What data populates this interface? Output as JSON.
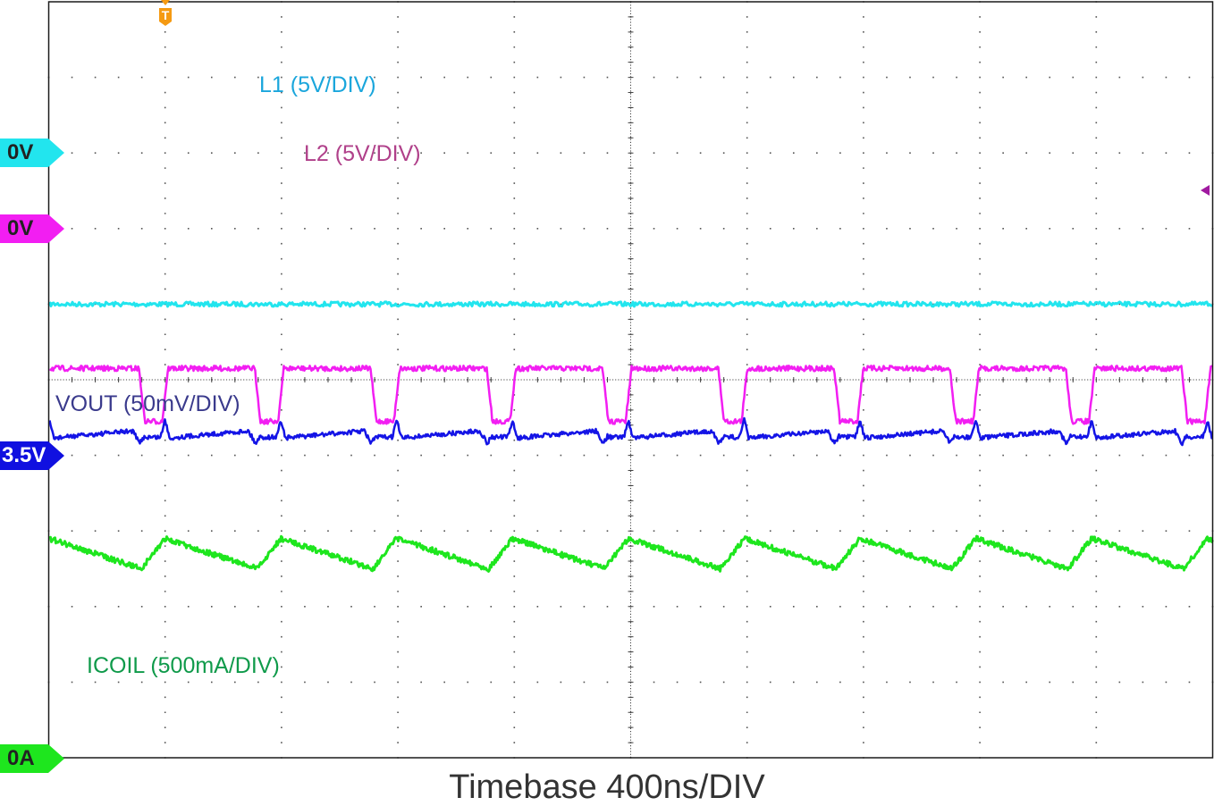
{
  "chart_data": {
    "type": "line",
    "title": "",
    "xlabel": "Timebase 400ns/DIV",
    "ylabel": "",
    "grid": true,
    "divisions": {
      "x": 10,
      "y": 10
    },
    "time_per_div_ns": 400,
    "x_range_ns": [
      0,
      4000
    ],
    "switching_period_ns": 398,
    "trigger": {
      "label": "T",
      "position_ns": 400,
      "color": "#f59a12"
    },
    "series": [
      {
        "name": "L1",
        "label": "L1 (5V/DIV)",
        "scale": "5V/DIV",
        "color": "#22e5ee",
        "label_color": "#1aa6dc",
        "ground_marker": "0V",
        "ground_marker_color": "#22e5ee",
        "ground_level_div": 5.4,
        "waveform": "dc",
        "level_div_above_ground": 0.6,
        "approx_voltage": 3.0
      },
      {
        "name": "L2",
        "label": "L2 (5V/DIV)",
        "scale": "5V/DIV",
        "color": "#f21ef2",
        "label_color": "#b0408a",
        "ground_marker": "0V",
        "ground_marker_color": "#f21ef2",
        "ground_level_div": 4.4,
        "waveform": "pulse",
        "high_div_above_ground": 0.75,
        "low_div_above_ground": 0.05,
        "approx_high_voltage": 3.75,
        "approx_low_voltage": 0.25,
        "low_duration_ns": 80,
        "falling_edges_ns": [
          310,
          708,
          1106,
          1505,
          1903,
          2301,
          2699,
          3097,
          3495,
          3893
        ]
      },
      {
        "name": "VOUT",
        "label": "VOUT (50mV/DIV)",
        "scale": "50mV/DIV",
        "color": "#1414e6",
        "label_color": "#3a3a8c",
        "ground_marker": "3.5V",
        "ground_marker_color": "#1010e0",
        "ground_level_div": 3.0,
        "waveform": "ripple",
        "level_div_above_ref": 1.3,
        "ripple_mV_pp": 17,
        "approx_dc_voltage": 3.565
      },
      {
        "name": "ICOIL",
        "label": "ICOIL (500mA/DIV)",
        "scale": "500mA/DIV",
        "color": "#1ee61e",
        "label_color": "#0f9a4a",
        "ground_marker": "0A",
        "ground_marker_color": "#1ee61e",
        "ground_level_div": 0.0,
        "waveform": "triangle",
        "peak_div": 2.9,
        "valley_div": 2.5,
        "approx_peak_mA": 1450,
        "approx_valley_mA": 1250,
        "approx_avg_mA": 1350,
        "peaks_ns": [
          400,
          798,
          1196,
          1595,
          1993,
          2391,
          2789,
          3187,
          3585,
          3983
        ],
        "valleys_ns": [
          318,
          716,
          1114,
          1513,
          1911,
          2309,
          2707,
          3105,
          3503,
          3901
        ]
      }
    ]
  },
  "labels": {
    "l1": "L1 (5V/DIV)",
    "l2": "L2 (5V/DIV)",
    "vout": "VOUT (50mV/DIV)",
    "icoil": "ICOIL (500mA/DIV)",
    "marker_l1": "0V",
    "marker_l2": "0V",
    "marker_vout": "3.5V",
    "marker_icoil": "0A",
    "trigger": "T",
    "timebase": "Timebase 400ns/DIV"
  }
}
